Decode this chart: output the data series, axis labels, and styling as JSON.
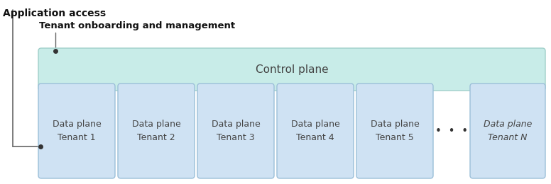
{
  "title_app": "Application access",
  "title_tenant": "Tenant onboarding and management",
  "control_plane_label": "Control plane",
  "data_planes": [
    "Data plane\nTenant 1",
    "Data plane\nTenant 2",
    "Data plane\nTenant 3",
    "Data plane\nTenant 4",
    "Data plane\nTenant 5",
    "Data plane\nTenant N"
  ],
  "ellipsis": "•  •  •",
  "control_plane_color": "#c8ece8",
  "control_plane_edge": "#9fcfc9",
  "data_plane_color": "#cfe2f3",
  "data_plane_edge": "#9bbfd8",
  "background_color": "#ffffff",
  "text_color": "#444444",
  "line_color": "#666666",
  "dot_color": "#333333",
  "title_color": "#111111"
}
